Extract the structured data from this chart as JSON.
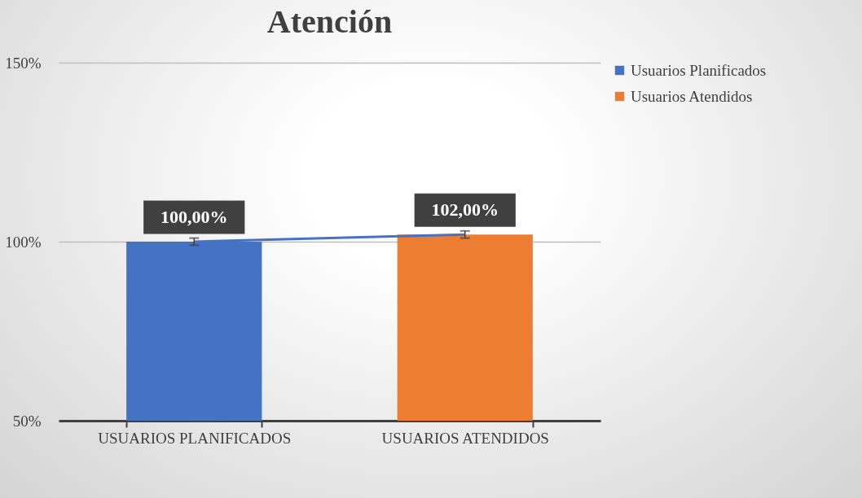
{
  "chart_data": {
    "type": "bar",
    "title": "Atención",
    "categories": [
      "USUARIOS PLANIFICADOS",
      "USUARIOS ATENDIDOS"
    ],
    "stacked": true,
    "series": [
      {
        "name": "Usuarios Planificados",
        "color": "#4472c4",
        "values": [
          100,
          null
        ],
        "errors": [
          1,
          null
        ],
        "value_labels": [
          "100,00%",
          null
        ]
      },
      {
        "name": "Usuarios Atendidos",
        "color": "#ed7d31",
        "values": [
          null,
          102
        ],
        "errors": [
          null,
          1
        ],
        "value_labels": [
          null,
          "102,00%"
        ]
      },
      {
        "type": "line",
        "color": "#4472c4",
        "values": [
          100,
          102
        ]
      }
    ],
    "ylim": [
      50,
      150
    ],
    "yticks": [
      {
        "value": 50,
        "label": "50%"
      },
      {
        "value": 100,
        "label": "100%"
      },
      {
        "value": 150,
        "label": "150%"
      }
    ],
    "grid": "y",
    "legend": "right"
  }
}
